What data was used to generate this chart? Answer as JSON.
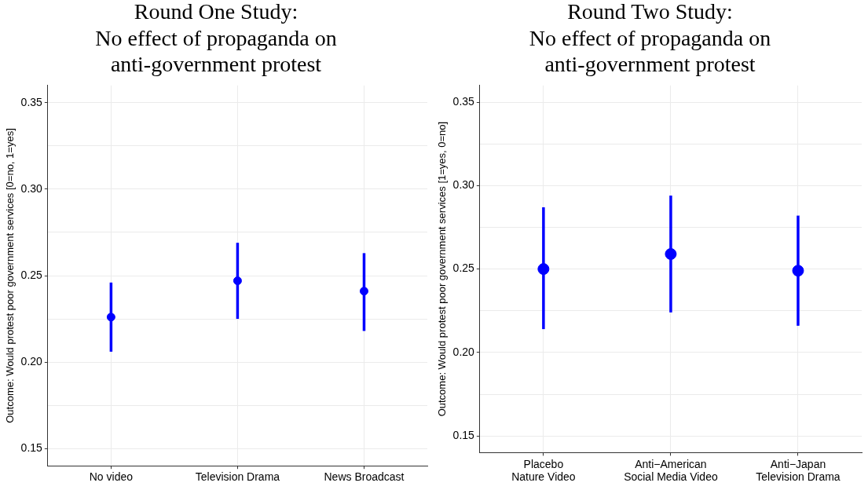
{
  "chart_data": [
    {
      "type": "scatter",
      "title": "Round One Study:\nNo effect of propaganda on\nanti-government protest",
      "ylabel": "Outcome: Would protest poor government services [0=no, 1=yes]",
      "categories": [
        "No video",
        "Television Drama",
        "News Broadcast"
      ],
      "series": [
        {
          "color": "#0000ff",
          "values": [
            0.226,
            0.247,
            0.241
          ],
          "errors": [
            [
              0.206,
              0.246
            ],
            [
              0.225,
              0.269
            ],
            [
              0.218,
              0.263
            ]
          ]
        }
      ],
      "ylim": [
        0.14,
        0.36
      ],
      "yticks": [
        0.15,
        {
          "value": 0.175,
          "label": null
        },
        {
          "value": 0.2,
          "label": "0.20"
        },
        {
          "value": 0.225,
          "label": null
        },
        0.25,
        {
          "value": 0.275,
          "label": null
        },
        {
          "value": 0.3,
          "label": "0.30"
        },
        {
          "value": 0.325,
          "label": null
        },
        0.35
      ],
      "grid": true,
      "marker": "circle",
      "legend": false
    },
    {
      "type": "scatter",
      "title": "Round Two Study:\nNo effect of propaganda on\nanti-government protest",
      "ylabel": "Outcome: Would protest poor government services [1=yes, 0=no]",
      "categories": [
        "Placebo\nNature Video",
        "Anti−American\nSocial Media Video",
        "Anti−Japan\nTelevision Drama"
      ],
      "series": [
        {
          "color": "#0000ff",
          "values": [
            0.25,
            0.259,
            0.249
          ],
          "errors": [
            [
              0.214,
              0.287
            ],
            [
              0.224,
              0.294
            ],
            [
              0.216,
              0.282
            ]
          ]
        }
      ],
      "ylim": [
        0.14,
        0.36
      ],
      "yticks": [
        0.15,
        {
          "value": 0.175,
          "label": null
        },
        {
          "value": 0.2,
          "label": "0.20"
        },
        {
          "value": 0.225,
          "label": null
        },
        0.25,
        {
          "value": 0.275,
          "label": null
        },
        {
          "value": 0.3,
          "label": "0.30"
        },
        {
          "value": 0.325,
          "label": null
        },
        0.35
      ],
      "grid": true,
      "marker": "circle",
      "legend": false
    }
  ]
}
